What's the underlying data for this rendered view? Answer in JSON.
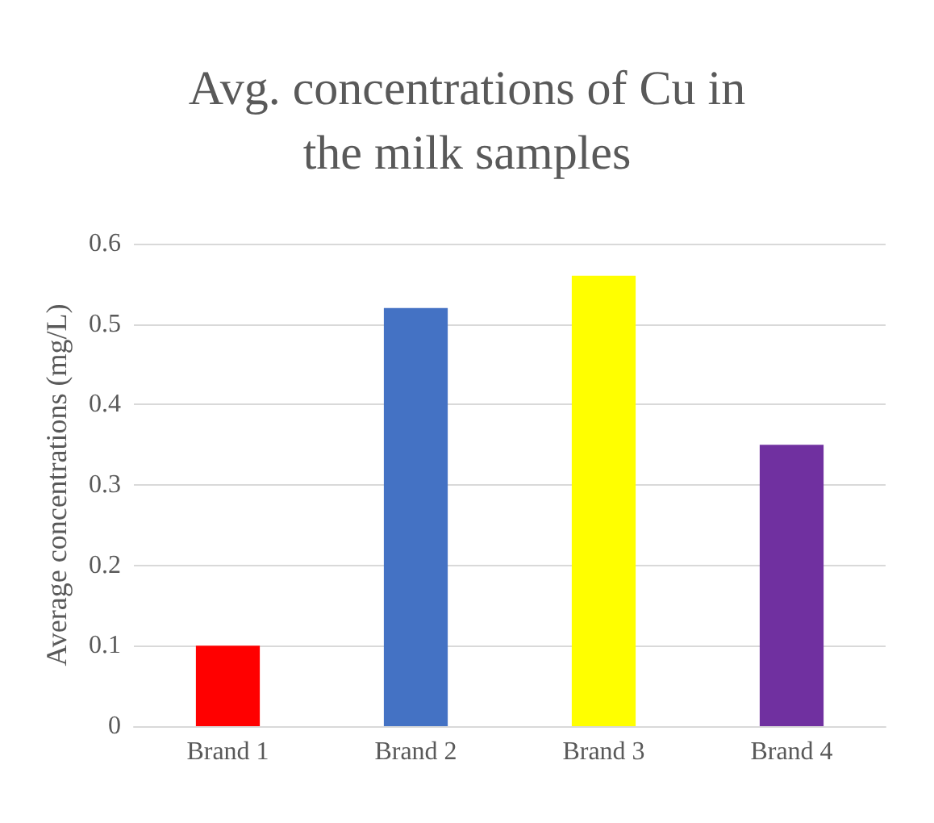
{
  "chart_data": {
    "type": "bar",
    "title": "Avg. concentrations of Cu in\nthe milk samples",
    "ylabel": "Average concentrations (mg/L)",
    "categories": [
      "Brand 1",
      "Brand 2",
      "Brand 3",
      "Brand 4"
    ],
    "values": [
      0.1,
      0.52,
      0.56,
      0.35
    ],
    "colors": [
      "#ff0000",
      "#4472c4",
      "#ffff00",
      "#7030a0"
    ],
    "ylim": [
      0,
      0.6
    ],
    "yticks": [
      0,
      0.1,
      0.2,
      0.3,
      0.4,
      0.5,
      0.6
    ],
    "grid": "y"
  }
}
